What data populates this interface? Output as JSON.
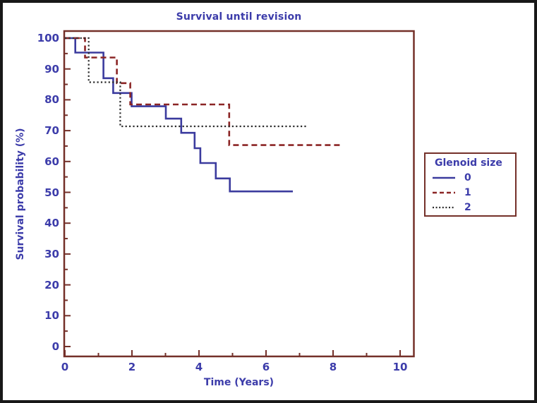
{
  "title": "Survival until revision",
  "x_axis": {
    "label": "Time (Years)",
    "min": 0,
    "max": 10,
    "major_ticks": [
      0,
      2,
      4,
      6,
      8,
      10
    ],
    "minor_step": 1
  },
  "y_axis": {
    "label": "Survival probability (%)",
    "min": 0,
    "max": 100,
    "major_ticks": [
      0,
      10,
      20,
      30,
      40,
      50,
      60,
      70,
      80,
      90,
      100
    ],
    "minor_step": 5
  },
  "legend": {
    "title": "Glenoid size",
    "items": [
      {
        "label": "0",
        "dash": "solid",
        "color": "#3b3b9e"
      },
      {
        "label": "1",
        "dash": "dashed",
        "color": "#8b2525"
      },
      {
        "label": "2",
        "dash": "dotted",
        "color": "#2b2b2b"
      }
    ]
  },
  "colors": {
    "frame": "#743029",
    "text": "#3c3caa",
    "outer_border": "#181818",
    "background": "#ffffff"
  },
  "chart_data": {
    "type": "line",
    "subtype": "kaplan-meier-step",
    "title": "Survival until revision",
    "xlabel": "Time (Years)",
    "ylabel": "Survival probability (%)",
    "xlim": [
      0,
      10
    ],
    "ylim": [
      0,
      100
    ],
    "grid": false,
    "legend_position": "right-outside",
    "series": [
      {
        "name": "0",
        "color": "#3b3b9e",
        "dash": "solid",
        "end_x": 6.8,
        "steps": [
          [
            0,
            100
          ],
          [
            0.31,
            95.3
          ],
          [
            1.15,
            87.0
          ],
          [
            1.44,
            82.2
          ],
          [
            1.99,
            77.9
          ],
          [
            3.01,
            73.9
          ],
          [
            3.47,
            69.3
          ],
          [
            3.87,
            64.3
          ],
          [
            4.04,
            59.5
          ],
          [
            4.5,
            54.5
          ],
          [
            4.92,
            50.3
          ]
        ]
      },
      {
        "name": "1",
        "color": "#8b2525",
        "dash": "dashed",
        "end_x": 8.25,
        "steps": [
          [
            0,
            100
          ],
          [
            0.6,
            93.7
          ],
          [
            1.55,
            85.4
          ],
          [
            1.95,
            78.5
          ],
          [
            4.9,
            65.3
          ]
        ]
      },
      {
        "name": "2",
        "color": "#2b2b2b",
        "dash": "dotted",
        "end_x": 7.2,
        "steps": [
          [
            0,
            100
          ],
          [
            0.71,
            85.7
          ],
          [
            1.65,
            71.4
          ]
        ]
      }
    ]
  }
}
